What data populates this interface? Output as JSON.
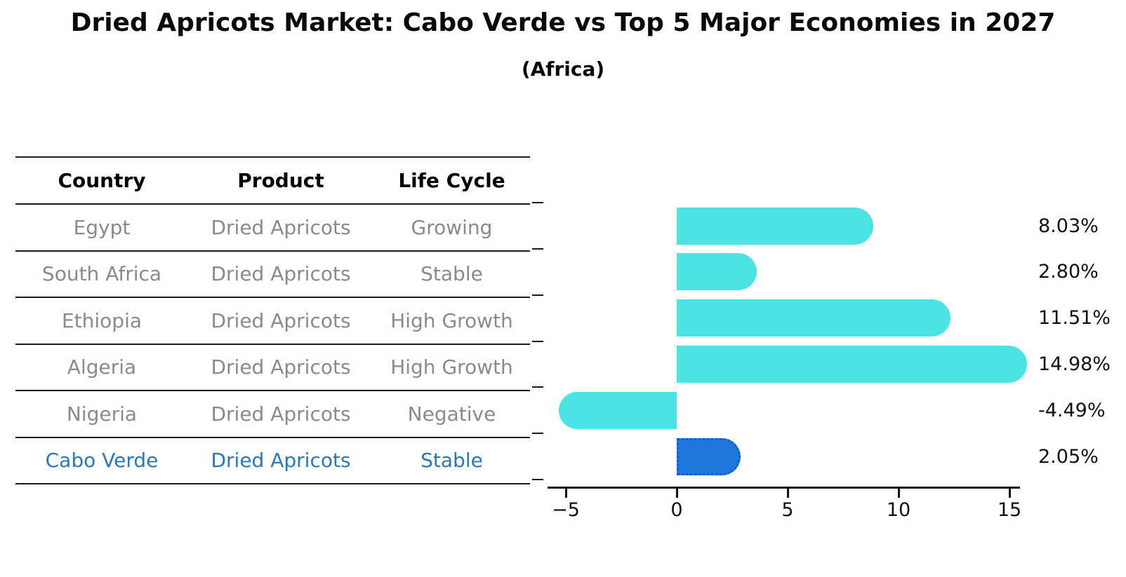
{
  "header": {
    "title": "Dried Apricots Market: Cabo Verde vs Top 5 Major Economies in 2027",
    "subtitle": "(Africa)"
  },
  "table": {
    "headers": [
      "Country",
      "Product",
      "Life Cycle"
    ],
    "rows": [
      {
        "country": "Egypt",
        "product": "Dried Apricots",
        "life_cycle": "Growing",
        "highlight": false
      },
      {
        "country": "South Africa",
        "product": "Dried Apricots",
        "life_cycle": "Stable",
        "highlight": false
      },
      {
        "country": "Ethiopia",
        "product": "Dried Apricots",
        "life_cycle": "High Growth",
        "highlight": false
      },
      {
        "country": "Algeria",
        "product": "Dried Apricots",
        "life_cycle": "High Growth",
        "highlight": false
      },
      {
        "country": "Nigeria",
        "product": "Dried Apricots",
        "life_cycle": "Negative",
        "highlight": false
      },
      {
        "country": "Cabo Verde",
        "product": "Dried Apricots",
        "life_cycle": "Stable",
        "highlight": true
      }
    ]
  },
  "chart_data": {
    "type": "bar",
    "orientation": "horizontal",
    "title": "Dried Apricots Market: Cabo Verde vs Top 5 Major Economies in 2027",
    "subtitle": "(Africa)",
    "categories": [
      "Egypt",
      "South Africa",
      "Ethiopia",
      "Algeria",
      "Nigeria",
      "Cabo Verde"
    ],
    "values": [
      8.03,
      2.8,
      11.51,
      14.98,
      -4.49,
      2.05
    ],
    "value_labels": [
      "8.03%",
      "2.80%",
      "11.51%",
      "14.98%",
      "-4.49%",
      "2.05%"
    ],
    "x_ticks": [
      -5,
      0,
      5,
      10,
      15
    ],
    "x_tick_labels": [
      "−5",
      "0",
      "5",
      "10",
      "15"
    ],
    "xlim": [
      -5.6,
      15.6
    ],
    "grid": false,
    "legend": null,
    "bar_color": "#4ae4e4",
    "highlight_index": 5,
    "highlight_color": "#1e78dc",
    "highlight_border_color": "#145ad2",
    "text_color_default": "#8a8a8a",
    "text_color_highlight": "#2878be"
  }
}
